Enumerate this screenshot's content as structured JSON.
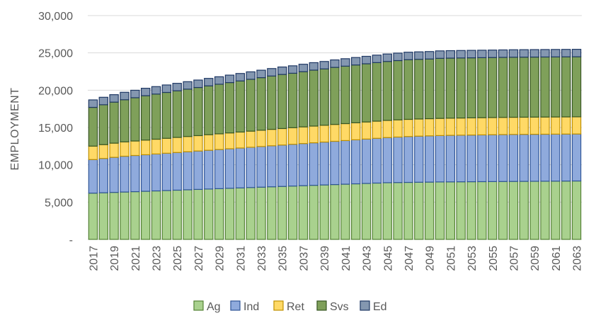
{
  "chart_data": {
    "type": "bar",
    "stacked": true,
    "title": "",
    "xlabel": "",
    "ylabel": "EMPLOYMENT",
    "ylim": [
      0,
      30000
    ],
    "yticks": [
      {
        "value": 0,
        "label": "-"
      },
      {
        "value": 5000,
        "label": "5,000"
      },
      {
        "value": 10000,
        "label": "10,000"
      },
      {
        "value": 15000,
        "label": "15,000"
      },
      {
        "value": 20000,
        "label": "20,000"
      },
      {
        "value": 25000,
        "label": "25,000"
      },
      {
        "value": 30000,
        "label": "30,000"
      }
    ],
    "grid": true,
    "legend_position": "bottom",
    "categories": [
      "2017",
      "2018",
      "2019",
      "2020",
      "2021",
      "2022",
      "2023",
      "2024",
      "2025",
      "2026",
      "2027",
      "2028",
      "2029",
      "2030",
      "2031",
      "2032",
      "2033",
      "2034",
      "2035",
      "2036",
      "2037",
      "2038",
      "2039",
      "2040",
      "2041",
      "2042",
      "2043",
      "2044",
      "2045",
      "2046",
      "2047",
      "2048",
      "2049",
      "2050",
      "2051",
      "2052",
      "2053",
      "2054",
      "2055",
      "2056",
      "2057",
      "2058",
      "2059",
      "2060",
      "2061",
      "2062",
      "2063"
    ],
    "series": [
      {
        "name": "Ag",
        "color": "#a9d18e",
        "border": "#548235",
        "values": [
          6200,
          6250,
          6300,
          6350,
          6400,
          6450,
          6500,
          6550,
          6600,
          6650,
          6700,
          6750,
          6800,
          6850,
          6900,
          6950,
          7000,
          7050,
          7100,
          7150,
          7200,
          7250,
          7300,
          7350,
          7400,
          7450,
          7500,
          7550,
          7600,
          7620,
          7640,
          7660,
          7680,
          7700,
          7710,
          7720,
          7730,
          7740,
          7750,
          7760,
          7770,
          7780,
          7790,
          7800,
          7810,
          7820,
          7830
        ]
      },
      {
        "name": "Ind",
        "color": "#8faadc",
        "border": "#2f5597",
        "values": [
          4500,
          4600,
          4700,
          4800,
          4850,
          4900,
          4950,
          5000,
          5050,
          5100,
          5150,
          5200,
          5250,
          5300,
          5350,
          5400,
          5450,
          5500,
          5550,
          5600,
          5650,
          5700,
          5750,
          5800,
          5850,
          5900,
          5950,
          6000,
          6050,
          6100,
          6150,
          6180,
          6200,
          6220,
          6240,
          6250,
          6260,
          6270,
          6280,
          6290,
          6300,
          6300,
          6300,
          6300,
          6300,
          6300,
          6300
        ]
      },
      {
        "name": "Ret",
        "color": "#ffd966",
        "border": "#bf9000",
        "values": [
          1800,
          1850,
          1900,
          1920,
          1940,
          1960,
          1980,
          2000,
          2020,
          2040,
          2060,
          2080,
          2100,
          2120,
          2140,
          2160,
          2180,
          2200,
          2210,
          2220,
          2230,
          2240,
          2250,
          2260,
          2270,
          2280,
          2290,
          2300,
          2300,
          2300,
          2300,
          2300,
          2300,
          2300,
          2300,
          2300,
          2300,
          2300,
          2300,
          2300,
          2300,
          2300,
          2300,
          2300,
          2300,
          2300,
          2300
        ]
      },
      {
        "name": "Svs",
        "color": "#7fa05a",
        "border": "#375623",
        "values": [
          5200,
          5350,
          5500,
          5650,
          5800,
          5950,
          6050,
          6150,
          6250,
          6350,
          6450,
          6550,
          6650,
          6750,
          6850,
          6950,
          7050,
          7150,
          7250,
          7300,
          7400,
          7500,
          7550,
          7650,
          7700,
          7750,
          7800,
          7850,
          7900,
          7950,
          8000,
          8000,
          8000,
          8050,
          8050,
          8050,
          8050,
          8050,
          8050,
          8050,
          8050,
          8050,
          8050,
          8050,
          8050,
          8050,
          8050
        ]
      },
      {
        "name": "Ed",
        "color": "#8497b0",
        "border": "#1f3864",
        "values": [
          1000,
          1000,
          1000,
          1000,
          1000,
          1000,
          1000,
          1000,
          1000,
          1000,
          1000,
          1000,
          1000,
          1000,
          1000,
          1000,
          1000,
          1000,
          1000,
          1000,
          1000,
          1000,
          1000,
          1000,
          1000,
          1000,
          1000,
          1000,
          1000,
          1000,
          1000,
          1000,
          1000,
          1000,
          1000,
          1000,
          1000,
          1000,
          1000,
          1000,
          1000,
          1000,
          1000,
          1000,
          1000,
          1000,
          1000
        ]
      }
    ]
  }
}
